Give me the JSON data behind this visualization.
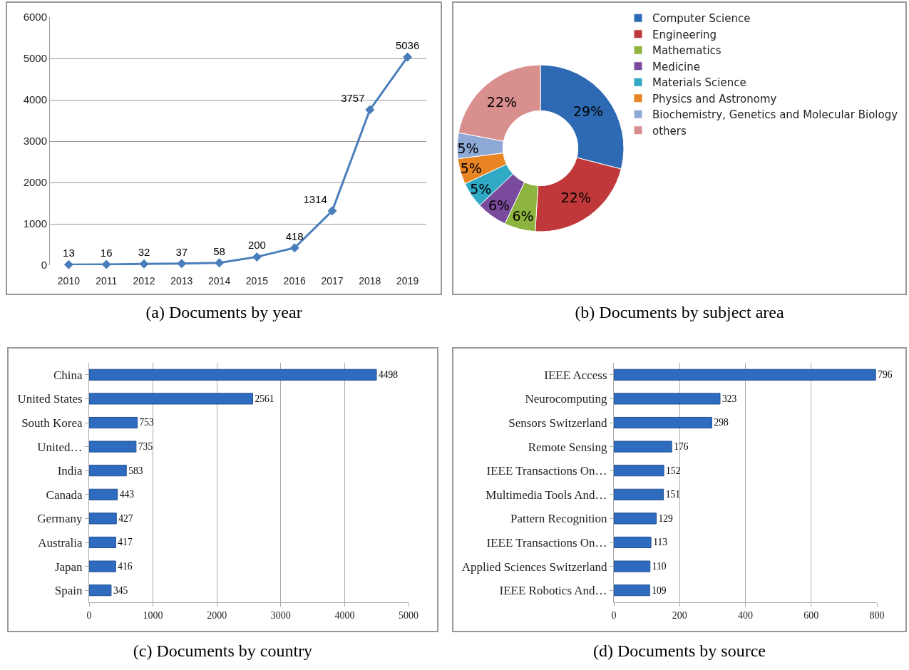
{
  "chart_data": [
    {
      "type": "line",
      "title": "(a) Documents by year",
      "categories": [
        "2010",
        "2011",
        "2012",
        "2013",
        "2014",
        "2015",
        "2016",
        "2017",
        "2018",
        "2019"
      ],
      "series": [
        {
          "color": "#4a7ebb",
          "values": [
            13,
            16,
            32,
            37,
            58,
            200,
            418,
            1314,
            3757,
            5036
          ]
        }
      ],
      "data_labels": true,
      "ylim": [
        0,
        6000
      ],
      "yticks": [
        0,
        1000,
        2000,
        3000,
        4000,
        5000,
        6000
      ],
      "grid": "y",
      "marker": "diamond",
      "line_style": "solid",
      "legend": false
    },
    {
      "type": "donut",
      "title": "(b) Documents by subject area",
      "categories": [
        "Computer Science",
        "Engineering",
        "Mathematics",
        "Medicine",
        "Materials Science",
        "Physics and Astronomy",
        "Biochemistry, Genetics and Molecular Biology",
        "others"
      ],
      "values": [
        29,
        22,
        6,
        6,
        5,
        5,
        5,
        22
      ],
      "value_labels": [
        "29%",
        "22%",
        "6%",
        "6%",
        "5%",
        "5%",
        "5%",
        "22%"
      ],
      "colors": [
        "#2e6ab3",
        "#c0383a",
        "#8db43e",
        "#7a4b9c",
        "#2fa9c4",
        "#e88421",
        "#8fa9d6",
        "#d98f8e"
      ],
      "legend": "right"
    },
    {
      "type": "bar",
      "orientation": "horizontal",
      "title": "(c) Documents by country",
      "categories": [
        "China",
        "United States",
        "South Korea",
        "United…",
        "India",
        "Canada",
        "Germany",
        "Australia",
        "Japan",
        "Spain"
      ],
      "series": [
        {
          "color": "#2f6cc0",
          "values": [
            4498,
            2561,
            753,
            735,
            583,
            443,
            427,
            417,
            416,
            345
          ]
        }
      ],
      "data_labels": true,
      "xlim": [
        0,
        5000
      ],
      "xticks": [
        0,
        1000,
        2000,
        3000,
        4000,
        5000
      ],
      "grid": "x",
      "legend": false
    },
    {
      "type": "bar",
      "orientation": "horizontal",
      "title": "(d) Documents by source",
      "categories": [
        "IEEE Access",
        "Neurocomputing",
        "Sensors Switzerland",
        "Remote Sensing",
        "IEEE Transactions On…",
        "Multimedia Tools And…",
        "Pattern Recognition",
        "IEEE Transactions On…",
        "Applied Sciences Switzerland",
        "IEEE Robotics And…"
      ],
      "series": [
        {
          "color": "#2f6cc0",
          "values": [
            796,
            323,
            298,
            176,
            152,
            151,
            129,
            113,
            110,
            109
          ]
        }
      ],
      "data_labels": true,
      "xlim": [
        0,
        800
      ],
      "xticks": [
        0,
        200,
        400,
        600,
        800
      ],
      "grid": "x",
      "legend": false
    }
  ]
}
